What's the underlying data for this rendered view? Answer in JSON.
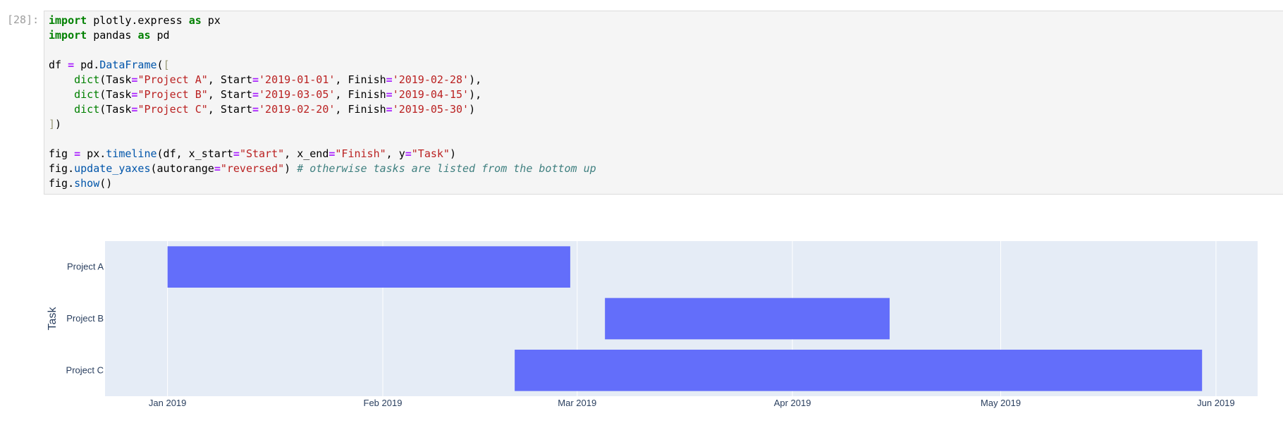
{
  "prompt": "[28]:",
  "code": {
    "styles": {
      "kw": {
        "color": "#008000",
        "weight": "bold"
      },
      "op": {
        "color": "#aa22ff",
        "weight": "bold"
      },
      "str": {
        "color": "#ba2121"
      },
      "fn": {
        "color": "#0055aa"
      },
      "builtin": {
        "color": "#008000"
      },
      "bracket": {
        "color": "#999977"
      },
      "comment": {
        "color": "#408080",
        "style": "italic"
      }
    },
    "lines": [
      [
        {
          "text": "import",
          "kind": "kw"
        },
        {
          "text": " plotly.express "
        },
        {
          "text": "as",
          "kind": "kw"
        },
        {
          "text": " px"
        }
      ],
      [
        {
          "text": "import",
          "kind": "kw"
        },
        {
          "text": " pandas "
        },
        {
          "text": "as",
          "kind": "kw"
        },
        {
          "text": " pd"
        }
      ],
      [],
      [
        {
          "text": "df "
        },
        {
          "text": "=",
          "kind": "op"
        },
        {
          "text": " pd."
        },
        {
          "text": "DataFrame",
          "kind": "fn"
        },
        {
          "text": "("
        },
        {
          "text": "[",
          "kind": "bracket"
        }
      ],
      [
        {
          "text": "    dict",
          "kind": "builtin"
        },
        {
          "text": "(Task"
        },
        {
          "text": "=",
          "kind": "op"
        },
        {
          "text": "\"Project A\"",
          "kind": "str"
        },
        {
          "text": ", Start"
        },
        {
          "text": "=",
          "kind": "op"
        },
        {
          "text": "'2019-01-01'",
          "kind": "str"
        },
        {
          "text": ", Finish"
        },
        {
          "text": "=",
          "kind": "op"
        },
        {
          "text": "'2019-02-28'",
          "kind": "str"
        },
        {
          "text": "),"
        }
      ],
      [
        {
          "text": "    dict",
          "kind": "builtin"
        },
        {
          "text": "(Task"
        },
        {
          "text": "=",
          "kind": "op"
        },
        {
          "text": "\"Project B\"",
          "kind": "str"
        },
        {
          "text": ", Start"
        },
        {
          "text": "=",
          "kind": "op"
        },
        {
          "text": "'2019-03-05'",
          "kind": "str"
        },
        {
          "text": ", Finish"
        },
        {
          "text": "=",
          "kind": "op"
        },
        {
          "text": "'2019-04-15'",
          "kind": "str"
        },
        {
          "text": "),"
        }
      ],
      [
        {
          "text": "    dict",
          "kind": "builtin"
        },
        {
          "text": "(Task"
        },
        {
          "text": "=",
          "kind": "op"
        },
        {
          "text": "\"Project C\"",
          "kind": "str"
        },
        {
          "text": ", Start"
        },
        {
          "text": "=",
          "kind": "op"
        },
        {
          "text": "'2019-02-20'",
          "kind": "str"
        },
        {
          "text": ", Finish"
        },
        {
          "text": "=",
          "kind": "op"
        },
        {
          "text": "'2019-05-30'",
          "kind": "str"
        },
        {
          "text": ")"
        }
      ],
      [
        {
          "text": "]",
          "kind": "bracket"
        },
        {
          "text": ")"
        }
      ],
      [],
      [
        {
          "text": "fig "
        },
        {
          "text": "=",
          "kind": "op"
        },
        {
          "text": " px."
        },
        {
          "text": "timeline",
          "kind": "fn"
        },
        {
          "text": "(df, x_start"
        },
        {
          "text": "=",
          "kind": "op"
        },
        {
          "text": "\"Start\"",
          "kind": "str"
        },
        {
          "text": ", x_end"
        },
        {
          "text": "=",
          "kind": "op"
        },
        {
          "text": "\"Finish\"",
          "kind": "str"
        },
        {
          "text": ", y"
        },
        {
          "text": "=",
          "kind": "op"
        },
        {
          "text": "\"Task\"",
          "kind": "str"
        },
        {
          "text": ")"
        }
      ],
      [
        {
          "text": "fig."
        },
        {
          "text": "update_yaxes",
          "kind": "fn"
        },
        {
          "text": "(autorange"
        },
        {
          "text": "=",
          "kind": "op"
        },
        {
          "text": "\"reversed\"",
          "kind": "str"
        },
        {
          "text": ") "
        },
        {
          "text": "# otherwise tasks are listed from the bottom up",
          "kind": "comment"
        }
      ],
      [
        {
          "text": "fig."
        },
        {
          "text": "show",
          "kind": "fn"
        },
        {
          "text": "()"
        }
      ]
    ]
  },
  "chart_data": {
    "type": "timeline",
    "y_label": "Task",
    "categories": [
      "Project A",
      "Project B",
      "Project C"
    ],
    "start": [
      "2019-01-01",
      "2019-03-05",
      "2019-02-20"
    ],
    "finish": [
      "2019-02-28",
      "2019-04-15",
      "2019-05-30"
    ],
    "color": "#636efa",
    "background": "#e5ecf6",
    "y_reversed": true,
    "grid": true,
    "xlim": [
      "2018-12-23",
      "2019-06-07"
    ],
    "xticks": [
      {
        "value": "2019-01-01",
        "label": "Jan 2019"
      },
      {
        "value": "2019-02-01",
        "label": "Feb 2019"
      },
      {
        "value": "2019-03-01",
        "label": "Mar 2019"
      },
      {
        "value": "2019-04-01",
        "label": "Apr 2019"
      },
      {
        "value": "2019-05-01",
        "label": "May 2019"
      },
      {
        "value": "2019-06-01",
        "label": "Jun 2019"
      }
    ]
  }
}
